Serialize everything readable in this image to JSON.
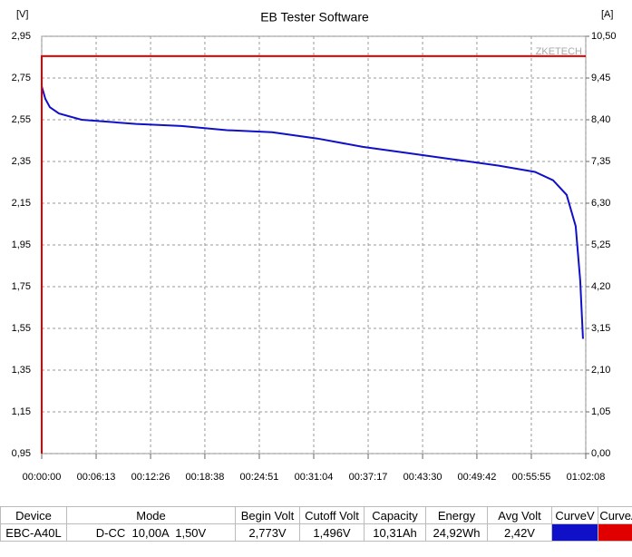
{
  "chart_data": {
    "type": "line",
    "title": "EB Tester Software",
    "y_label": "[V]",
    "y2_label": "[A]",
    "watermark": "ZKETECH",
    "xlim": [
      0,
      3728
    ],
    "xticks": [
      {
        "value": 0,
        "label": "00:00:00"
      },
      {
        "value": 373,
        "label": "00:06:13"
      },
      {
        "value": 746,
        "label": "00:12:26"
      },
      {
        "value": 1118,
        "label": "00:18:38"
      },
      {
        "value": 1491,
        "label": "00:24:51"
      },
      {
        "value": 1864,
        "label": "00:31:04"
      },
      {
        "value": 2237,
        "label": "00:37:17"
      },
      {
        "value": 2610,
        "label": "00:43:30"
      },
      {
        "value": 2982,
        "label": "00:49:42"
      },
      {
        "value": 3355,
        "label": "00:55:55"
      },
      {
        "value": 3728,
        "label": "01:02:08"
      }
    ],
    "ylim": [
      0.95,
      2.95
    ],
    "yticks": [
      {
        "value": 0.95,
        "label": "0,95"
      },
      {
        "value": 1.15,
        "label": "1,15"
      },
      {
        "value": 1.35,
        "label": "1,35"
      },
      {
        "value": 1.55,
        "label": "1,55"
      },
      {
        "value": 1.75,
        "label": "1,75"
      },
      {
        "value": 1.95,
        "label": "1,95"
      },
      {
        "value": 2.15,
        "label": "2,15"
      },
      {
        "value": 2.35,
        "label": "2,35"
      },
      {
        "value": 2.55,
        "label": "2,55"
      },
      {
        "value": 2.75,
        "label": "2,75"
      },
      {
        "value": 2.95,
        "label": "2,95"
      }
    ],
    "y2lim": [
      0,
      10.5
    ],
    "y2ticks": [
      {
        "value": 0,
        "label": "0,00"
      },
      {
        "value": 1.05,
        "label": "1,05"
      },
      {
        "value": 2.1,
        "label": "2,10"
      },
      {
        "value": 3.15,
        "label": "3,15"
      },
      {
        "value": 4.2,
        "label": "4,20"
      },
      {
        "value": 5.25,
        "label": "5,25"
      },
      {
        "value": 6.3,
        "label": "6,30"
      },
      {
        "value": 7.35,
        "label": "7,35"
      },
      {
        "value": 8.4,
        "label": "8,40"
      },
      {
        "value": 9.45,
        "label": "9,45"
      },
      {
        "value": 10.5,
        "label": "10,50"
      }
    ],
    "grid": true,
    "series": [
      {
        "name": "CurveV",
        "color": "#1010c8",
        "axis": "y",
        "x": [
          0,
          25,
          56,
          118,
          273,
          646,
          957,
          1268,
          1578,
          1889,
          2200,
          2510,
          2821,
          3132,
          3380,
          3504,
          3597,
          3659,
          3690,
          3709
        ],
        "values": [
          2.71,
          2.65,
          2.61,
          2.58,
          2.55,
          2.53,
          2.52,
          2.5,
          2.49,
          2.46,
          2.42,
          2.39,
          2.36,
          2.33,
          2.3,
          2.26,
          2.19,
          2.04,
          1.78,
          1.5
        ]
      },
      {
        "name": "CurveA",
        "color": "#e00000",
        "axis": "y2",
        "x": [
          0,
          0,
          3728
        ],
        "values": [
          0,
          10,
          10
        ]
      }
    ]
  },
  "table": {
    "headers": [
      "Device",
      "Mode",
      "Begin Volt",
      "Cutoff Volt",
      "Capacity",
      "Energy",
      "Avg Volt",
      "CurveV",
      "CurveA"
    ],
    "rows": [
      [
        "EBC-A40L",
        "D-CC  10,00A  1,50V",
        "2,773V",
        "1,496V",
        "10,31Ah",
        "24,92Wh",
        "2,42V"
      ]
    ]
  }
}
